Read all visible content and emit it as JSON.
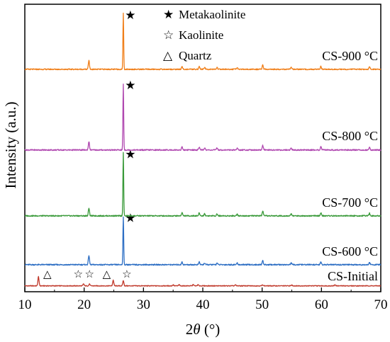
{
  "chart_data": {
    "type": "line",
    "xlabel_prefix": "2",
    "xlabel_theta": "θ",
    "xlabel_suffix": " (°)",
    "ylabel": "Intensity (a.u.)",
    "xlim": [
      10,
      70
    ],
    "xticks": [
      10,
      20,
      30,
      40,
      50,
      60,
      70
    ],
    "legend": [
      {
        "symbol": "★",
        "label": "Metakaolinite"
      },
      {
        "symbol": "☆",
        "label": "Kaolinite"
      },
      {
        "symbol": "△",
        "label": "Quartz"
      }
    ],
    "series": [
      {
        "name": "CS-Initial",
        "color": "#c0392b",
        "baseline": 0.1,
        "peaks": [
          [
            12.3,
            4.2
          ],
          [
            19.9,
            0.9
          ],
          [
            20.9,
            0.8
          ],
          [
            24.9,
            2.6
          ],
          [
            26.6,
            2.4
          ],
          [
            35.0,
            0.5
          ],
          [
            36.0,
            0.5
          ],
          [
            38.4,
            0.6
          ],
          [
            39.2,
            0.5
          ],
          [
            45.5,
            0.4
          ],
          [
            50.1,
            0.5
          ],
          [
            55.0,
            0.4
          ],
          [
            62.3,
            0.5
          ]
        ],
        "markers": [
          {
            "x": 13.8,
            "symbol": "△"
          },
          {
            "x": 19.0,
            "symbol": "☆"
          },
          {
            "x": 20.9,
            "symbol": "☆"
          },
          {
            "x": 23.8,
            "symbol": "△"
          },
          {
            "x": 27.2,
            "symbol": "☆"
          }
        ]
      },
      {
        "name": "CS-600 °C",
        "color": "#2e6fc4",
        "baseline": 0.25,
        "peaks": [
          [
            20.8,
            2.8
          ],
          [
            26.6,
            14.5
          ],
          [
            36.5,
            0.8
          ],
          [
            39.4,
            0.8
          ],
          [
            40.3,
            0.5
          ],
          [
            42.4,
            0.5
          ],
          [
            45.8,
            0.5
          ],
          [
            50.1,
            1.3
          ],
          [
            54.9,
            0.5
          ],
          [
            59.9,
            0.8
          ],
          [
            68.1,
            0.7
          ]
        ],
        "markers": [
          {
            "x": 27.8,
            "symbol": "★"
          }
        ]
      },
      {
        "name": "CS-700 °C",
        "color": "#3a9a3a",
        "baseline": 0.25,
        "peaks": [
          [
            20.8,
            2.4
          ],
          [
            26.6,
            19.0
          ],
          [
            36.5,
            1.0
          ],
          [
            39.4,
            0.9
          ],
          [
            40.3,
            0.6
          ],
          [
            42.4,
            0.6
          ],
          [
            45.8,
            0.6
          ],
          [
            50.1,
            1.4
          ],
          [
            54.9,
            0.6
          ],
          [
            59.9,
            0.9
          ],
          [
            68.1,
            0.8
          ]
        ],
        "markers": [
          {
            "x": 27.8,
            "symbol": "★"
          }
        ]
      },
      {
        "name": "CS-800 °C",
        "color": "#b048b0",
        "baseline": 0.25,
        "peaks": [
          [
            20.8,
            2.5
          ],
          [
            26.6,
            19.5
          ],
          [
            36.5,
            0.9
          ],
          [
            39.4,
            0.9
          ],
          [
            40.3,
            0.6
          ],
          [
            42.4,
            0.6
          ],
          [
            45.8,
            0.6
          ],
          [
            50.1,
            1.3
          ],
          [
            54.9,
            0.6
          ],
          [
            59.9,
            0.9
          ],
          [
            68.1,
            0.8
          ]
        ],
        "markers": [
          {
            "x": 27.8,
            "symbol": "★"
          }
        ]
      },
      {
        "name": "CS-900 °C",
        "color": "#f07f1a",
        "baseline": 0.25,
        "peaks": [
          [
            20.8,
            2.8
          ],
          [
            26.6,
            17.5
          ],
          [
            36.5,
            0.8
          ],
          [
            39.4,
            0.9
          ],
          [
            40.3,
            0.6
          ],
          [
            42.4,
            0.6
          ],
          [
            45.8,
            0.6
          ],
          [
            50.1,
            1.3
          ],
          [
            54.9,
            0.6
          ],
          [
            59.9,
            0.9
          ],
          [
            68.1,
            0.8
          ]
        ],
        "markers": [
          {
            "x": 27.8,
            "symbol": "★"
          }
        ]
      }
    ]
  }
}
